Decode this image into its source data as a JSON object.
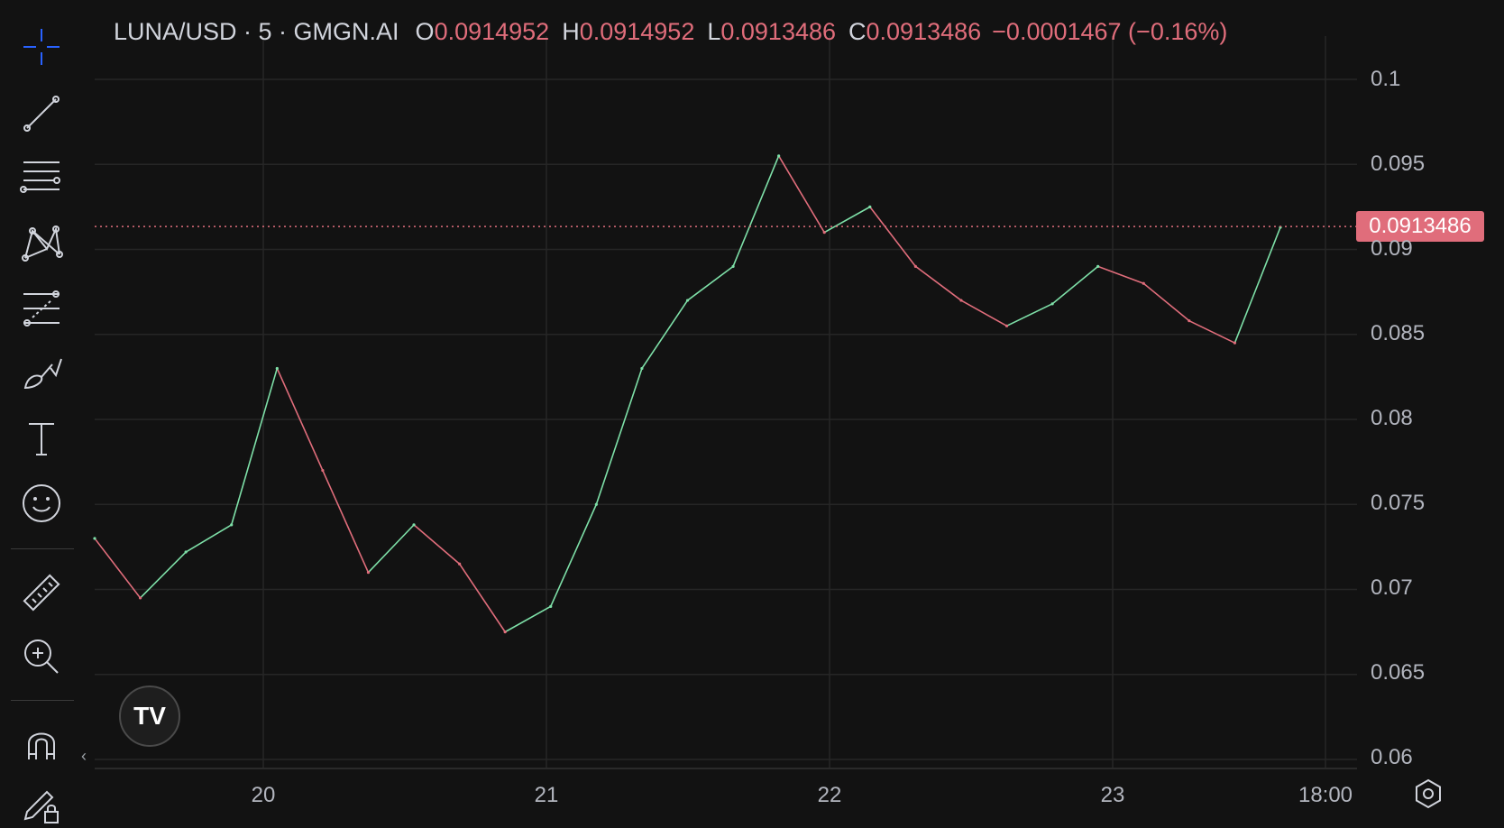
{
  "legend": {
    "symbol": "LUNA/USD · 5 · GMGN.AI",
    "o_label": "O",
    "o": "0.0914952",
    "h_label": "H",
    "h": "0.0914952",
    "l_label": "L",
    "l": "0.0913486",
    "c_label": "C",
    "c": "0.0913486",
    "change": "−0.0001467 (−0.16%)"
  },
  "last_price": "0.0913486",
  "y_axis": [
    "0.1",
    "0.095",
    "0.09",
    "0.085",
    "0.08",
    "0.075",
    "0.07",
    "0.065",
    "0.06"
  ],
  "x_axis": [
    "20",
    "21",
    "22",
    "23",
    "18:00"
  ],
  "toolbar": [
    "crosshair-icon",
    "trend-line-icon",
    "fib-retracement-icon",
    "pattern-icon",
    "forecast-icon",
    "brush-icon",
    "text-icon",
    "emoji-icon",
    "ruler-icon",
    "zoom-in-icon",
    "magnet-icon",
    "lock-edit-icon"
  ],
  "colors": {
    "up": "#7ee0a8",
    "down": "#e06d7b",
    "background": "#121212",
    "accent": "#2962ff"
  },
  "chart_data": {
    "type": "line",
    "title": "LUNA/USD · 5 · GMGN.AI",
    "x": [
      "19 08:00",
      "19 12:00",
      "19 16:00",
      "19 20:00",
      "20 00:00",
      "20 04:00",
      "20 08:00",
      "20 12:00",
      "20 16:00",
      "20 20:00",
      "21 00:00",
      "21 04:00",
      "21 08:00",
      "21 12:00",
      "21 16:00",
      "21 20:00",
      "22 00:00",
      "22 04:00",
      "22 08:00",
      "22 12:00",
      "22 16:00",
      "22 20:00",
      "23 00:00",
      "23 04:00",
      "23 08:00",
      "23 12:00",
      "23 16:00"
    ],
    "series": [
      {
        "values": [
          0.073,
          0.0695,
          0.0722,
          0.0738,
          0.083,
          0.077,
          0.071,
          0.0738,
          0.0715,
          0.0675,
          0.069,
          0.075,
          0.083,
          0.087,
          0.089,
          0.0955,
          0.091,
          0.0925,
          0.089,
          0.087,
          0.0855,
          0.0868,
          0.089,
          0.088,
          0.0858,
          0.0845,
          0.0913
        ]
      }
    ],
    "ylim": [
      0.06,
      0.1
    ],
    "y_ticks": [
      0.1,
      0.095,
      0.09,
      0.085,
      0.08,
      0.075,
      0.07,
      0.065,
      0.06
    ],
    "last_value": 0.0913486,
    "grid": true
  }
}
